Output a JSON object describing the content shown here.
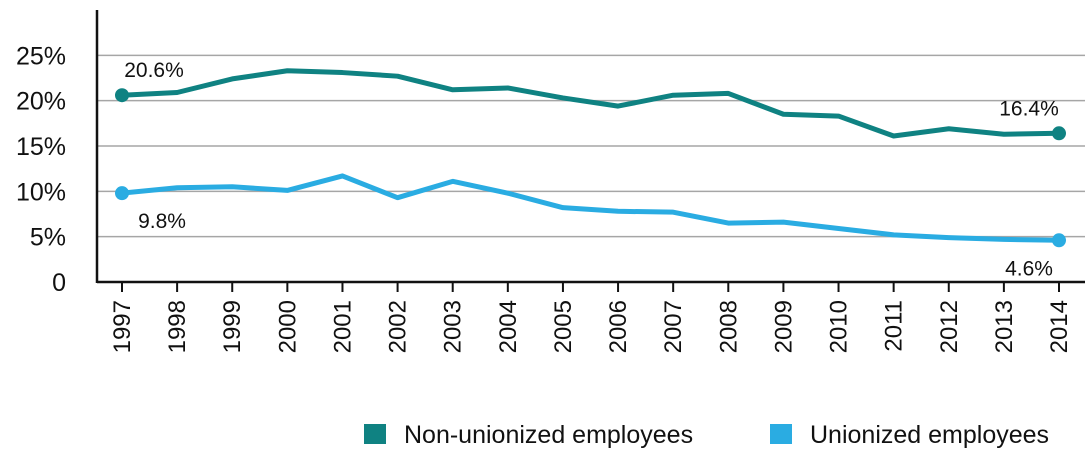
{
  "chart_data": {
    "type": "line",
    "categories": [
      "1997",
      "1998",
      "1999",
      "2000",
      "2001",
      "2002",
      "2003",
      "2004",
      "2005",
      "2006",
      "2007",
      "2008",
      "2009",
      "2010",
      "2011",
      "2012",
      "2013",
      "2014"
    ],
    "series": [
      {
        "name": "Non-unionized employees",
        "color": "#0f8282",
        "values": [
          20.6,
          20.9,
          22.4,
          23.3,
          23.1,
          22.7,
          21.2,
          21.4,
          20.3,
          19.4,
          20.6,
          20.8,
          18.5,
          18.3,
          16.1,
          16.9,
          16.3,
          16.4
        ],
        "value_labels": [
          "20.6%",
          null,
          null,
          null,
          null,
          null,
          null,
          null,
          null,
          null,
          null,
          null,
          null,
          null,
          null,
          null,
          null,
          "16.4%"
        ]
      },
      {
        "name": "Unionized employees",
        "color": "#2aace2",
        "values": [
          9.8,
          10.4,
          10.5,
          10.1,
          11.7,
          9.3,
          11.1,
          9.8,
          8.2,
          7.8,
          7.7,
          6.5,
          6.6,
          5.9,
          5.2,
          4.9,
          4.7,
          4.6
        ],
        "value_labels": [
          "9.8%",
          null,
          null,
          null,
          null,
          null,
          null,
          null,
          null,
          null,
          null,
          null,
          null,
          null,
          null,
          null,
          null,
          "4.6%"
        ]
      }
    ],
    "ylim": [
      0,
      30
    ],
    "yticks": [
      0,
      {
        "value": 5,
        "label": "5%"
      },
      {
        "value": 10,
        "label": "10%"
      },
      {
        "value": 15,
        "label": "15%"
      },
      {
        "value": 20,
        "label": "20%"
      },
      {
        "value": 25,
        "label": "25%"
      }
    ],
    "grid": true,
    "legend": "bottom"
  }
}
